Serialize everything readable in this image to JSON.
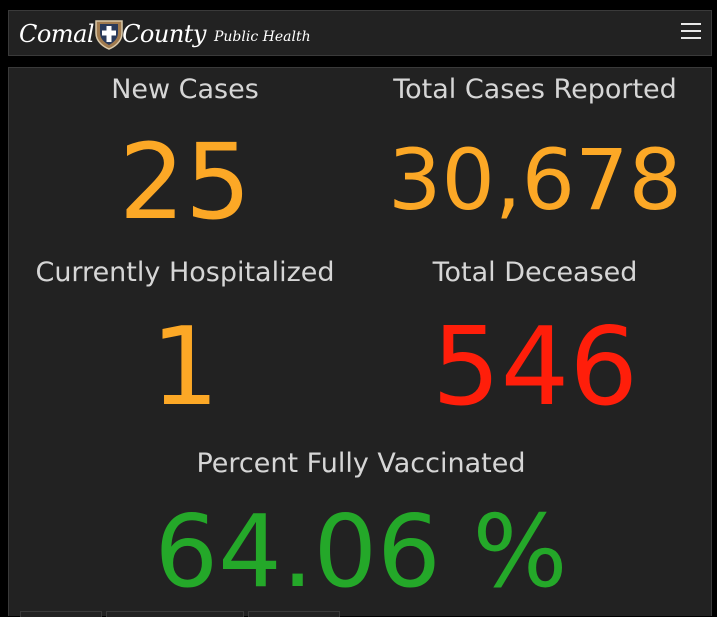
{
  "header": {
    "logo_word1": "Comal",
    "logo_word2": "County",
    "logo_tagline": "Public Health",
    "menu_icon": "hamburger-menu-icon"
  },
  "dashboard": {
    "new_cases": {
      "label": "New Cases",
      "value": "25"
    },
    "total_cases": {
      "label": "Total Cases Reported",
      "value": "30,678"
    },
    "hospitalized": {
      "label": "Currently Hospitalized",
      "value": "1"
    },
    "deceased": {
      "label": "Total Deceased",
      "value": "546"
    },
    "vaccinated": {
      "label": "Percent Fully Vaccinated",
      "value": "64.06 %"
    }
  },
  "colors": {
    "orange": "#fca826",
    "red": "#ff1e0a",
    "green": "#24a829",
    "label": "#d6d6d6",
    "panel": "#222222"
  }
}
